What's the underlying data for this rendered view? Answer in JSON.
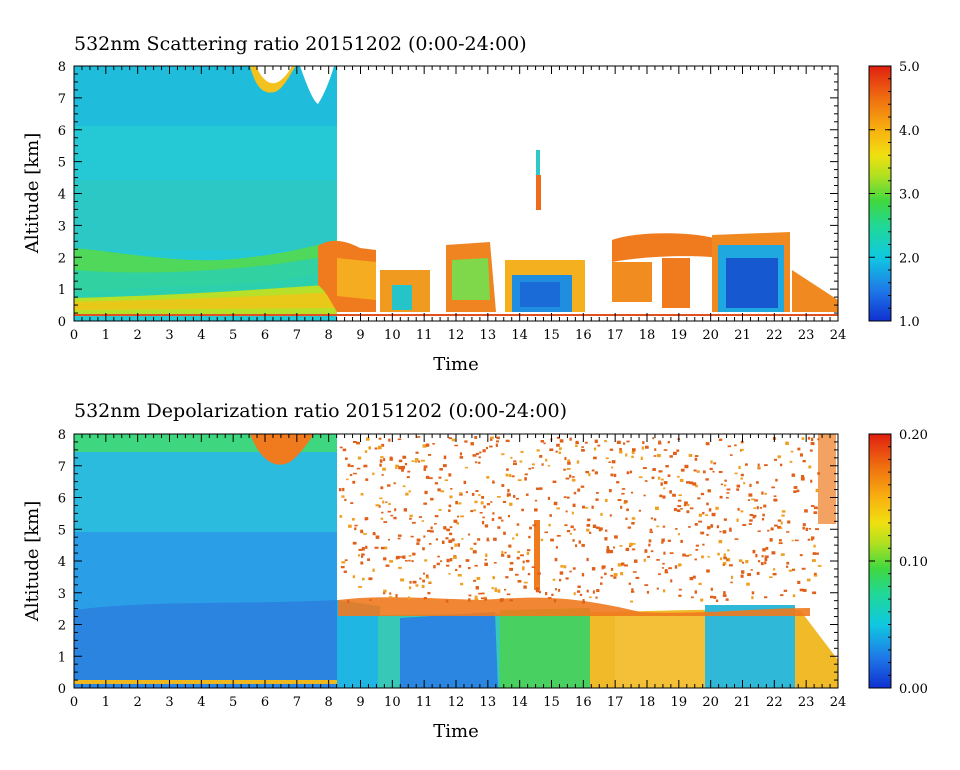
{
  "chart_data": [
    {
      "type": "heatmap",
      "title": "532nm Scattering ratio  20151202 (0:00-24:00)",
      "xlabel": "Time",
      "ylabel": "Altitude [km]",
      "xlim": [
        0,
        24
      ],
      "ylim": [
        0,
        8
      ],
      "x_ticks": [
        "0",
        "1",
        "2",
        "3",
        "4",
        "5",
        "6",
        "7",
        "8",
        "9",
        "10",
        "11",
        "12",
        "13",
        "14",
        "15",
        "16",
        "17",
        "18",
        "19",
        "20",
        "21",
        "22",
        "23",
        "24"
      ],
      "y_ticks": [
        "0",
        "1",
        "2",
        "3",
        "4",
        "5",
        "6",
        "7",
        "8"
      ],
      "colorbar": {
        "min": 1.0,
        "max": 5.0,
        "ticks": [
          "1.0",
          "2.0",
          "3.0",
          "4.0",
          "5.0"
        ]
      }
    },
    {
      "type": "heatmap",
      "title": "532nm Depolarization ratio  20151202 (0:00-24:00)",
      "xlabel": "Time",
      "ylabel": "Altitude [km]",
      "xlim": [
        0,
        24
      ],
      "ylim": [
        0,
        8
      ],
      "x_ticks": [
        "0",
        "1",
        "2",
        "3",
        "4",
        "5",
        "6",
        "7",
        "8",
        "9",
        "10",
        "11",
        "12",
        "13",
        "14",
        "15",
        "16",
        "17",
        "18",
        "19",
        "20",
        "21",
        "22",
        "23",
        "24"
      ],
      "y_ticks": [
        "0",
        "1",
        "2",
        "3",
        "4",
        "5",
        "6",
        "7",
        "8"
      ],
      "colorbar": {
        "min": 0.0,
        "max": 0.2,
        "ticks": [
          "0.00",
          "0.10",
          "0.20"
        ]
      }
    }
  ]
}
